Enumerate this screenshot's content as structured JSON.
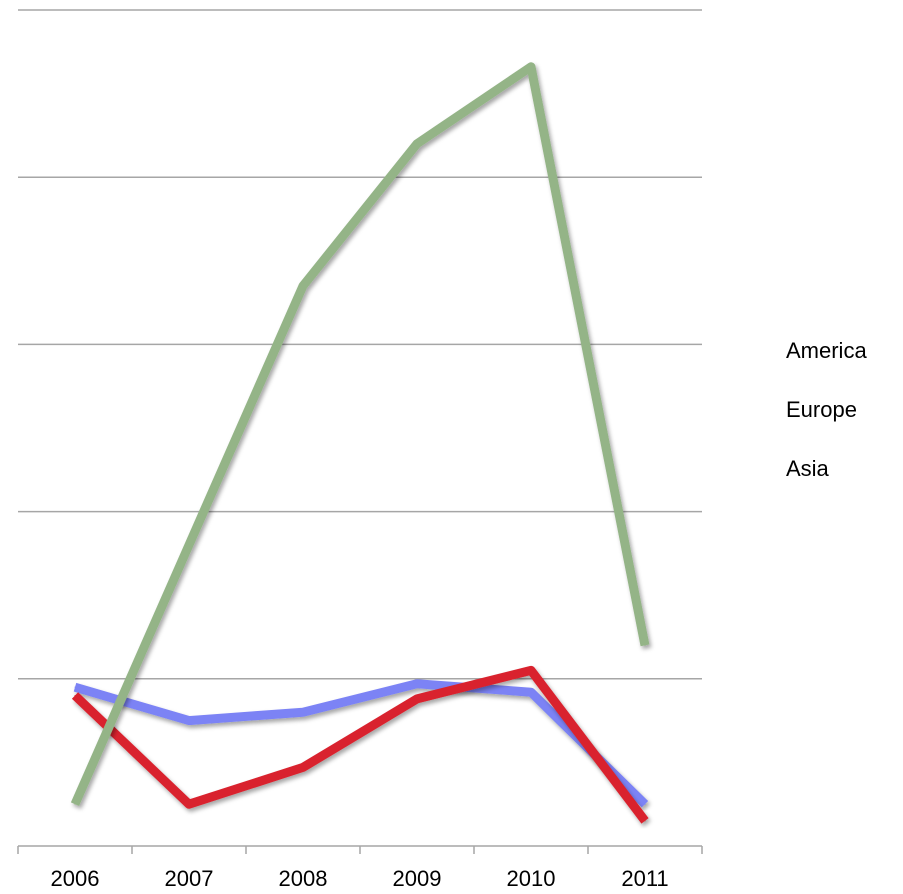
{
  "chart_data": {
    "type": "line",
    "title": "",
    "xlabel": "",
    "ylabel": "",
    "categories": [
      "2006",
      "2007",
      "2008",
      "2009",
      "2010",
      "2011"
    ],
    "ylim": [
      0,
      5
    ],
    "grid": true,
    "legend_position": "right",
    "series": [
      {
        "name": "America",
        "color": "#7b83f5",
        "values": [
          0.95,
          0.75,
          0.8,
          0.97,
          0.92,
          0.25
        ]
      },
      {
        "name": "Europe",
        "color": "#d9232e",
        "values": [
          0.9,
          0.25,
          0.47,
          0.88,
          1.05,
          0.15
        ]
      },
      {
        "name": "Asia",
        "color": "#94b487",
        "values": [
          0.25,
          1.8,
          3.35,
          4.2,
          4.66,
          1.2
        ]
      }
    ]
  }
}
